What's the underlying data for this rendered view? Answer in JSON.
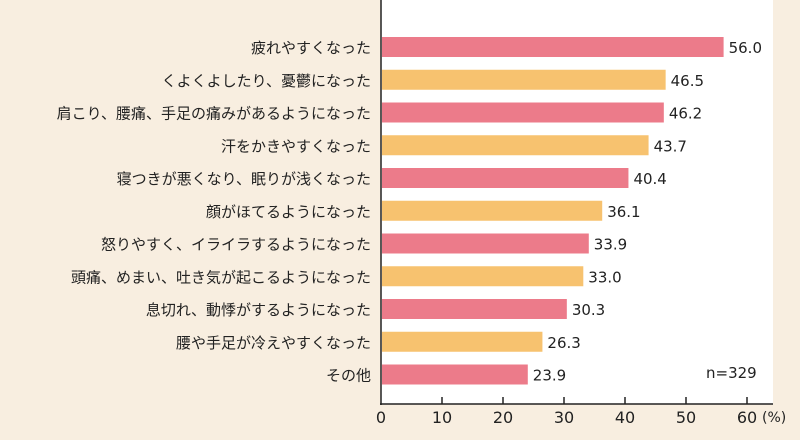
{
  "chart_data": {
    "type": "bar",
    "orientation": "horizontal",
    "categories": [
      "疲れやすくなった",
      "くよくよしたり、憂鬱になった",
      "肩こり、腰痛、手足の痛みがあるようになった",
      "汗をかきやすくなった",
      "寝つきが悪くなり、眠りが浅くなった",
      "顔がほてるようになった",
      "怒りやすく、イライラするようになった",
      "頭痛、めまい、吐き気が起こるようになった",
      "息切れ、動悸がするようになった",
      "腰や手足が冷えやすくなった",
      "その他"
    ],
    "values": [
      56.0,
      46.5,
      46.2,
      43.7,
      40.4,
      36.1,
      33.9,
      33.0,
      30.3,
      26.3,
      23.9
    ],
    "value_labels": [
      "56.0",
      "46.5",
      "46.2",
      "43.7",
      "40.4",
      "36.1",
      "33.9",
      "33.0",
      "30.3",
      "26.3",
      "23.9"
    ],
    "bar_colors": [
      "#ec7b8a",
      "#f7c26f",
      "#ec7b8a",
      "#f7c26f",
      "#ec7b8a",
      "#f7c26f",
      "#ec7b8a",
      "#f7c26f",
      "#ec7b8a",
      "#f7c26f",
      "#ec7b8a"
    ],
    "xlim": [
      0,
      60
    ],
    "xticks": [
      "0",
      "10",
      "20",
      "30",
      "40",
      "50",
      "60"
    ],
    "xunit": "(%)",
    "annotation": "n=329",
    "grid": false
  }
}
